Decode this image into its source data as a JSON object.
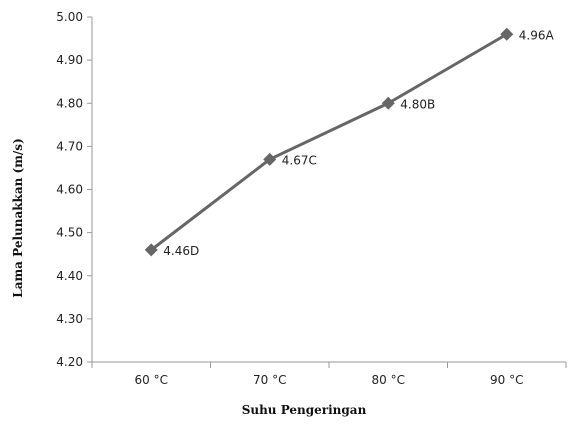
{
  "chart_data": {
    "type": "line",
    "title": "",
    "xlabel": "Suhu Pengeringan",
    "ylabel": "Lama Pelunakkan (m/s)",
    "categories": [
      "60 °C",
      "70 °C",
      "80 °C",
      "90 °C"
    ],
    "series": [
      {
        "values": [
          4.46,
          4.67,
          4.8,
          4.96
        ],
        "labels": [
          "4.46D",
          "4.67C",
          "4.80B",
          "4.96A"
        ],
        "color": "#666666",
        "marker": "diamond"
      }
    ],
    "ylim": [
      4.2,
      5.0
    ],
    "yticks": [
      "4.20",
      "4.30",
      "4.40",
      "4.50",
      "4.60",
      "4.70",
      "4.80",
      "4.90",
      "5.00"
    ],
    "grid": false,
    "legend": "none"
  }
}
